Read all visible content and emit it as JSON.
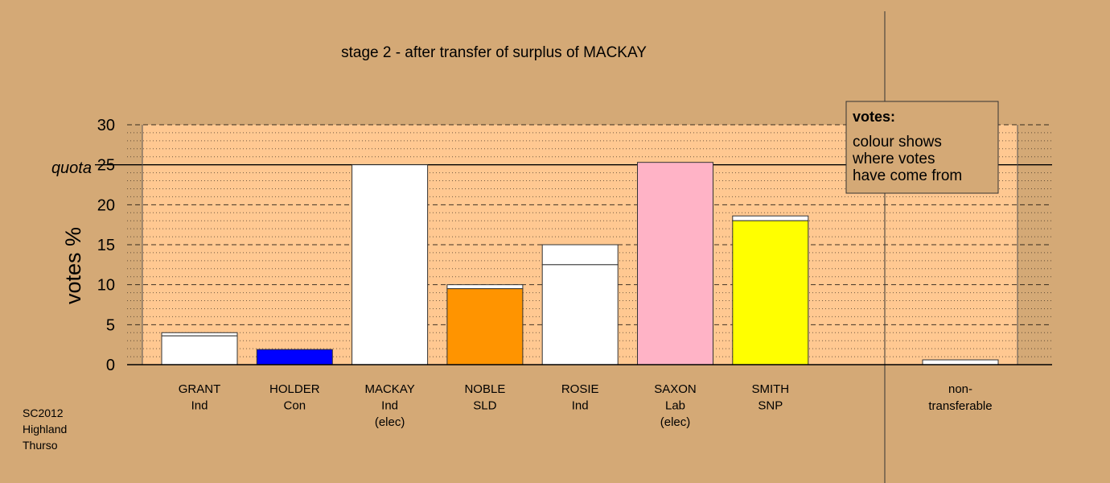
{
  "chart_data": {
    "type": "bar",
    "title": "stage 2 - after transfer of surplus of MACKAY",
    "ylabel": "votes %",
    "ylim": [
      0,
      30
    ],
    "yticks": [
      "0",
      "5",
      "10",
      "15",
      "20",
      "25",
      "30"
    ],
    "quota_label": "quota",
    "quota_value": 25,
    "legend": {
      "title": "votes:",
      "lines": [
        "colour shows",
        "where votes",
        "have come from"
      ]
    },
    "footer": [
      "SC2012",
      "Highland",
      "Thurso"
    ],
    "bars": [
      {
        "line1": "GRANT",
        "line2": "Ind",
        "line3": "",
        "color": "#FFFFFF",
        "base": 3.6,
        "total": 4.0
      },
      {
        "line1": "HOLDER",
        "line2": "Con",
        "line3": "",
        "color": "#0000FF",
        "base": 1.9,
        "total": 1.9
      },
      {
        "line1": "MACKAY",
        "line2": "Ind",
        "line3": "(elec)",
        "color": "#FFFFFF",
        "base": 25.0,
        "total": 25.0
      },
      {
        "line1": "NOBLE",
        "line2": "SLD",
        "line3": "",
        "color": "#FF9400",
        "base": 9.5,
        "total": 10.0
      },
      {
        "line1": "ROSIE",
        "line2": "Ind",
        "line3": "",
        "color": "#FFFFFF",
        "base": 12.5,
        "total": 15.0
      },
      {
        "line1": "SAXON",
        "line2": "Lab",
        "line3": "(elec)",
        "color": "#FFB3C6",
        "base": 25.3,
        "total": 25.3
      },
      {
        "line1": "SMITH",
        "line2": "SNP",
        "line3": "",
        "color": "#FFFF00",
        "base": 18.0,
        "total": 18.6
      }
    ],
    "nontransferable": {
      "line1": "non-",
      "line2": "transferable",
      "color": "#FFFFFF",
      "value": 0.6
    }
  }
}
